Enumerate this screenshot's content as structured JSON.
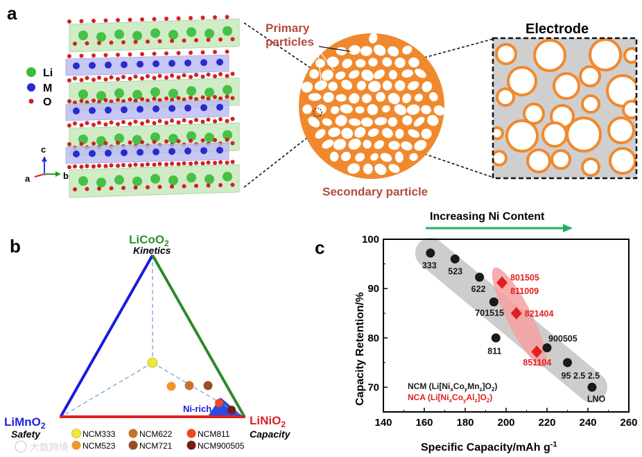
{
  "panels": {
    "a": {
      "letter": "a",
      "legend": [
        {
          "symbol": "Li",
          "color": "#3dbb3d"
        },
        {
          "symbol": "M",
          "color": "#2a2ad0"
        },
        {
          "symbol": "O",
          "color": "#d42020"
        }
      ],
      "axes": {
        "c": "c",
        "a": "a",
        "b": "b"
      },
      "primary_label_1": "Primary",
      "primary_label_2": "particles",
      "secondary_label": "Secondary particle",
      "electrode_label": "Electrode"
    },
    "b": {
      "letter": "b",
      "top_formula": "LiCoO",
      "top_sub": "2",
      "top_property": "Kinetics",
      "left_formula": "LiMnO",
      "left_sub": "2",
      "left_property": "Safety",
      "right_formula": "LiNiO",
      "right_sub": "2",
      "right_property": "Capacity",
      "ni_rich": "Ni-rich",
      "materials": [
        {
          "name": "NCM333",
          "color": "#f2e63a"
        },
        {
          "name": "NCM523",
          "color": "#f2962a"
        },
        {
          "name": "NCM622",
          "color": "#c8722e"
        },
        {
          "name": "NCM721",
          "color": "#9a4e26"
        },
        {
          "name": "NCM811",
          "color": "#f04820"
        },
        {
          "name": "NCM900505",
          "color": "#7a1a10"
        }
      ],
      "colors": {
        "green": "#2a8a2a",
        "blue": "#1a1ae0",
        "red": "#e02020",
        "top_label": "#2f8f2f",
        "left_label": "#1f1fe0",
        "right_label": "#e02020"
      }
    },
    "c": {
      "letter": "c",
      "arrow_label": "Increasing Ni Content",
      "watermark": "大数跨境"
    }
  },
  "chart_data": {
    "type": "scatter",
    "title": "",
    "xlabel": "Specific Capacity/mAh g",
    "xlabel_sup": "-1",
    "ylabel": "Capacity Retention/%",
    "xlim": [
      140,
      260
    ],
    "ylim": [
      65,
      100
    ],
    "xticks": [
      "140",
      "160",
      "180",
      "200",
      "220",
      "240",
      "260"
    ],
    "yticks": [
      "70",
      "80",
      "90",
      "100"
    ],
    "legend": {
      "ncm_prefix": "NCM (Li[Ni",
      "ncm_mid1": "Co",
      "ncm_mid2": "Mn",
      "ncm_suffix": "]O",
      "ncm_color": "#1a1a1a",
      "nca_prefix": "NCA (Li[Ni",
      "nca_mid1": "Co",
      "nca_mid2": "Al",
      "nca_suffix": "]O",
      "nca_color": "#e02020",
      "sub_x": "x",
      "sub_y": "y",
      "sub_z": "z",
      "sub_2": "2",
      "close": ")"
    },
    "series": [
      {
        "name": "NCM",
        "marker": "circle",
        "color": "#1a1a1a",
        "points": [
          {
            "x": 163,
            "y": 97.2,
            "label": "333"
          },
          {
            "x": 175,
            "y": 96.0,
            "label": "523"
          },
          {
            "x": 187,
            "y": 92.3,
            "label": "622"
          },
          {
            "x": 194,
            "y": 87.3,
            "label": "701515"
          },
          {
            "x": 195,
            "y": 80.0,
            "label": "811"
          },
          {
            "x": 220,
            "y": 78.0,
            "label": "900505"
          },
          {
            "x": 230,
            "y": 75.0,
            "label": "95 2.5 2.5"
          },
          {
            "x": 242,
            "y": 70.0,
            "label": "LNO"
          }
        ]
      },
      {
        "name": "NCA",
        "marker": "diamond",
        "color": "#e02020",
        "points": [
          {
            "x": 198,
            "y": 91.2,
            "label": "801505"
          },
          {
            "x": 198,
            "y": 91.0,
            "label": "811009"
          },
          {
            "x": 205,
            "y": 85.0,
            "label": "821404"
          },
          {
            "x": 215,
            "y": 77.2,
            "label": "851104"
          }
        ]
      }
    ]
  }
}
